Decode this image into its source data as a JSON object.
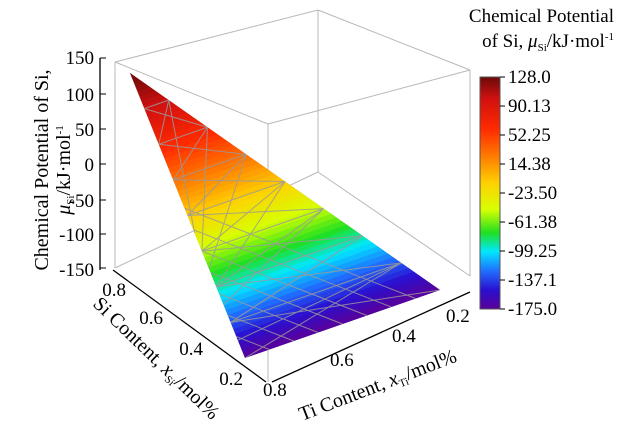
{
  "chart_data": {
    "type": "surface-3d",
    "title": "",
    "z_axis": {
      "label_prefix": "Chemical Potential of Si,",
      "label_symbol": "μ",
      "label_sub": "Si",
      "label_unit": "/kJ·mol",
      "label_unit_sup": "-1",
      "ticks": [
        "150",
        "100",
        "50",
        "0",
        "-50",
        "-100",
        "-150"
      ],
      "range": [
        -175,
        150
      ]
    },
    "si_axis": {
      "label_prefix": "Si Content, ",
      "label_symbol": "x",
      "label_sub": "Si",
      "label_unit": "/mol%",
      "ticks": [
        "0.8",
        "0.6",
        "0.4",
        "0.2"
      ]
    },
    "ti_axis": {
      "label_prefix": "Ti Content, ",
      "label_symbol": "x",
      "label_sub": "Ti",
      "label_unit": "/mol%",
      "ticks": [
        "0.8",
        "0.6",
        "0.4",
        "0.2"
      ]
    },
    "colorbar": {
      "title_line1": "Chemical Potential",
      "title_line2_prefix": "of Si, ",
      "title_symbol": "μ",
      "title_sub": "Si",
      "title_unit": "/kJ·mol",
      "title_unit_sup": "-1",
      "ticks": [
        "128.0",
        "90.13",
        "52.25",
        "14.38",
        "-23.50",
        "-61.38",
        "-99.25",
        "-137.1",
        "-175.0"
      ],
      "range": [
        -175.0,
        128.0
      ]
    },
    "surface_corner_values": [
      128,
      -175,
      -175
    ],
    "colormap_stops": [
      {
        "v": 128,
        "color": "#6b0a0a"
      },
      {
        "v": 100,
        "color": "#d01010"
      },
      {
        "v": 60,
        "color": "#ff2a00"
      },
      {
        "v": 25,
        "color": "#ff7a00"
      },
      {
        "v": -10,
        "color": "#ffd000"
      },
      {
        "v": -45,
        "color": "#d8ff00"
      },
      {
        "v": -75,
        "color": "#20e020"
      },
      {
        "v": -100,
        "color": "#00e8ff"
      },
      {
        "v": -125,
        "color": "#2070ff"
      },
      {
        "v": -150,
        "color": "#2a10d0"
      },
      {
        "v": -175,
        "color": "#5a009a"
      }
    ]
  }
}
